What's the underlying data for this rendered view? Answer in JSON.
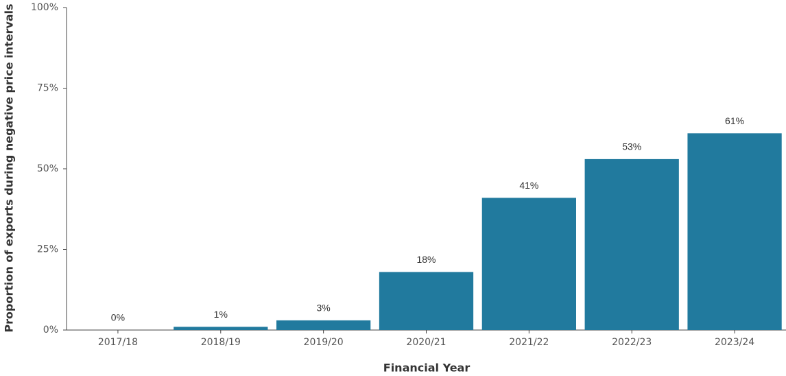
{
  "chart_data": {
    "type": "bar",
    "x_label": "Financial Year",
    "y_label": "Proportion of exports during negative price intervals",
    "categories": [
      "2017/18",
      "2018/19",
      "2019/20",
      "2020/21",
      "2021/22",
      "2022/23",
      "2023/24"
    ],
    "values": [
      0,
      1,
      3,
      18,
      41,
      53,
      61
    ],
    "value_labels": [
      "0%",
      "1%",
      "3%",
      "18%",
      "41%",
      "53%",
      "61%"
    ],
    "color": "#217a9e",
    "ylim": [
      0,
      100
    ],
    "yticks": [
      {
        "value": 0,
        "label": "0%"
      },
      {
        "value": 25,
        "label": "25%"
      },
      {
        "value": 50,
        "label": "50%"
      },
      {
        "value": 75,
        "label": "75%"
      },
      {
        "value": 100,
        "label": "100%"
      }
    ],
    "grid": false
  }
}
